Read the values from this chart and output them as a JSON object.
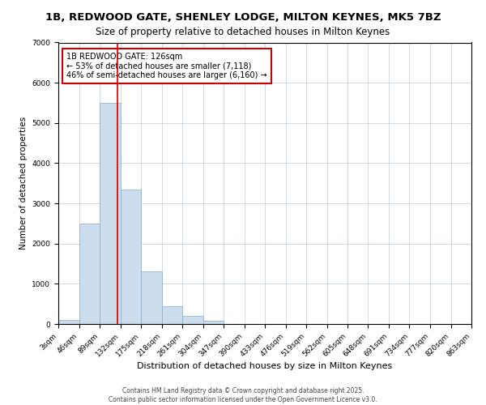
{
  "title": "1B, REDWOOD GATE, SHENLEY LODGE, MILTON KEYNES, MK5 7BZ",
  "subtitle": "Size of property relative to detached houses in Milton Keynes",
  "xlabel": "Distribution of detached houses by size in Milton Keynes",
  "ylabel": "Number of detached properties",
  "bar_color": "#ccdded",
  "bar_edge_color": "#88aac8",
  "background_color": "#ffffff",
  "grid_color": "#bbccdd",
  "annotation_box_color": "#cc0000",
  "vline_color": "#cc0000",
  "vline_x": 126,
  "bin_edges": [
    3,
    46,
    89,
    132,
    175,
    218,
    261,
    304,
    347,
    390,
    433,
    476,
    519,
    562,
    605,
    648,
    691,
    734,
    777,
    820,
    863
  ],
  "bar_heights": [
    100,
    2500,
    5500,
    3350,
    1300,
    450,
    200,
    75,
    0,
    0,
    0,
    0,
    0,
    0,
    0,
    0,
    0,
    0,
    0,
    0
  ],
  "ylim": [
    0,
    7000
  ],
  "yticks": [
    0,
    1000,
    2000,
    3000,
    4000,
    5000,
    6000,
    7000
  ],
  "annotation_title": "1B REDWOOD GATE: 126sqm",
  "annotation_line1": "← 53% of detached houses are smaller (7,118)",
  "annotation_line2": "46% of semi-detached houses are larger (6,160) →",
  "footer_line1": "Contains HM Land Registry data © Crown copyright and database right 2025.",
  "footer_line2": "Contains public sector information licensed under the Open Government Licence v3.0.",
  "title_fontsize": 9.5,
  "subtitle_fontsize": 8.5,
  "xlabel_fontsize": 8,
  "ylabel_fontsize": 7.5,
  "tick_fontsize": 6.5,
  "annotation_fontsize": 7,
  "footer_fontsize": 5.5
}
